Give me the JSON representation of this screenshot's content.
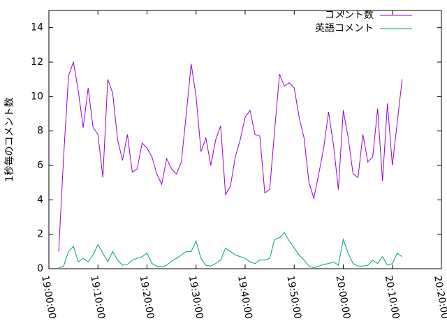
{
  "chart_data": {
    "type": "line",
    "ylabel": "1秒毎のコメント数",
    "x": [
      "19:02:00",
      "19:03:00",
      "19:04:00",
      "19:05:00",
      "19:06:00",
      "19:07:00",
      "19:08:00",
      "19:09:00",
      "19:10:00",
      "19:11:00",
      "19:12:00",
      "19:13:00",
      "19:14:00",
      "19:15:00",
      "19:16:00",
      "19:17:00",
      "19:18:00",
      "19:19:00",
      "19:20:00",
      "19:21:00",
      "19:22:00",
      "19:23:00",
      "19:24:00",
      "19:25:00",
      "19:26:00",
      "19:27:00",
      "19:28:00",
      "19:29:00",
      "19:30:00",
      "19:31:00",
      "19:32:00",
      "19:33:00",
      "19:34:00",
      "19:35:00",
      "19:36:00",
      "19:37:00",
      "19:38:00",
      "19:39:00",
      "19:40:00",
      "19:41:00",
      "19:42:00",
      "19:43:00",
      "19:44:00",
      "19:45:00",
      "19:46:00",
      "19:47:00",
      "19:48:00",
      "19:49:00",
      "19:50:00",
      "19:51:00",
      "19:52:00",
      "19:53:00",
      "19:54:00",
      "19:55:00",
      "19:56:00",
      "19:57:00",
      "19:58:00",
      "19:59:00",
      "20:00:00",
      "20:01:00",
      "20:02:00",
      "20:03:00",
      "20:04:00",
      "20:05:00",
      "20:06:00",
      "20:07:00",
      "20:08:00",
      "20:09:00",
      "20:10:00",
      "20:11:00",
      "20:12:00"
    ],
    "series": [
      {
        "name": "コメント数",
        "color": "#9400d3",
        "values": [
          1.0,
          6.5,
          11.2,
          12.0,
          10.3,
          8.2,
          10.5,
          8.2,
          7.8,
          5.3,
          11.0,
          10.2,
          7.5,
          6.3,
          7.8,
          5.6,
          5.8,
          7.3,
          7.0,
          6.5,
          5.5,
          4.9,
          6.4,
          5.8,
          5.5,
          6.2,
          9.0,
          11.9,
          10.0,
          6.8,
          7.6,
          6.0,
          7.5,
          8.3,
          4.3,
          4.8,
          6.5,
          7.5,
          8.8,
          9.2,
          7.8,
          7.7,
          4.4,
          4.6,
          8.0,
          11.3,
          10.6,
          10.8,
          10.5,
          8.8,
          7.6,
          5.0,
          4.1,
          5.5,
          7.0,
          9.1,
          7.2,
          4.6,
          9.2,
          7.6,
          5.5,
          5.3,
          7.8,
          6.2,
          6.5,
          9.3,
          5.1,
          9.6,
          6.0,
          8.5,
          11.0
        ]
      },
      {
        "name": "英語コメント",
        "color": "#009e73",
        "values": [
          0.05,
          0.15,
          1.0,
          1.3,
          0.4,
          0.6,
          0.4,
          0.8,
          1.4,
          0.9,
          0.4,
          1.0,
          0.5,
          0.2,
          0.25,
          0.5,
          0.6,
          0.7,
          0.9,
          0.3,
          0.15,
          0.1,
          0.2,
          0.45,
          0.6,
          0.8,
          1.0,
          1.0,
          1.6,
          0.6,
          0.2,
          0.15,
          0.3,
          0.5,
          1.2,
          1.0,
          0.8,
          0.7,
          0.6,
          0.4,
          0.3,
          0.5,
          0.5,
          0.6,
          1.7,
          1.8,
          2.1,
          1.6,
          1.2,
          0.8,
          0.5,
          0.15,
          0.05,
          0.15,
          0.25,
          0.3,
          0.4,
          0.2,
          1.7,
          0.9,
          0.3,
          0.15,
          0.15,
          0.2,
          0.5,
          0.3,
          0.7,
          0.2,
          0.3,
          0.9,
          0.7
        ]
      }
    ],
    "xlim": [
      "19:00:00",
      "20:20:00"
    ],
    "xticks": [
      "19:00:00",
      "19:10:00",
      "19:20:00",
      "19:30:00",
      "19:40:00",
      "19:50:00",
      "20:00:00",
      "20:10:00",
      "20:20:00"
    ],
    "ylim": [
      0,
      15
    ],
    "yticks": [
      0,
      2,
      4,
      6,
      8,
      10,
      12,
      14
    ],
    "grid": false,
    "legend": "top-right"
  }
}
